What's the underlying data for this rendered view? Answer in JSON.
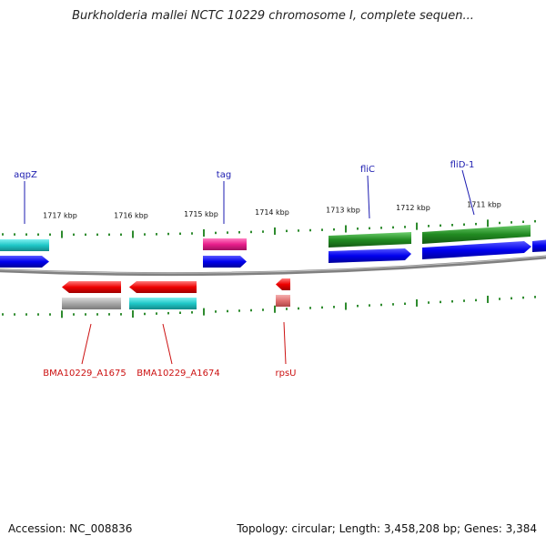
{
  "title": "Burkholderia mallei NCTC 10229 chromosome I, complete sequen...",
  "footer": {
    "accession": "Accession: NC_008836",
    "topology": "Topology: circular; Length: 3,458,208 bp; Genes: 3,384"
  },
  "axis_labels": [
    "1717 kbp",
    "1716 kbp",
    "1715 kbp",
    "1714 kbp",
    "1713 kbp",
    "1712 kbp",
    "1711 kbp"
  ],
  "top_gene_labels": [
    "aqpZ",
    "tag",
    "fliC",
    "fliD-1"
  ],
  "bottom_gene_labels": [
    "BMA10229_A1675",
    "BMA10229_A1674",
    "rpsU"
  ],
  "colors": {
    "backbone": "#808080",
    "tick": "#2e8b2e",
    "cds_blue": "#0000ee",
    "cds_red": "#ee0000",
    "cyan": "#1fc7c7",
    "magenta": "#e81e8c",
    "green": "#228b22",
    "gray": "#a8a8a8",
    "pink": "#e07070",
    "label_blue": "#1b1bb0",
    "label_red": "#cc1111"
  }
}
